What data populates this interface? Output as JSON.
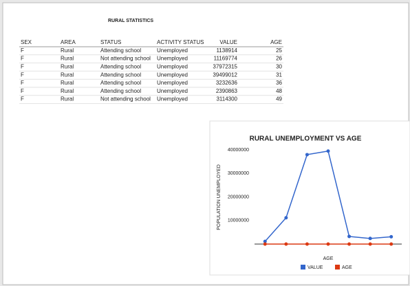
{
  "title": "RURAL STATISTICS",
  "table": {
    "header": [
      "SEX",
      "AREA",
      "STATUS",
      "ACTIVITY STATUS",
      "VALUE",
      "AGE"
    ],
    "rows": [
      [
        "F",
        "Rural",
        "Attending school",
        "Unemployed",
        1138914,
        25
      ],
      [
        "F",
        "Rural",
        "Not attending school",
        "Unemployed",
        11169774,
        26
      ],
      [
        "F",
        "Rural",
        "Attending school",
        "Unemployed",
        37972315,
        30
      ],
      [
        "F",
        "Rural",
        "Attending school",
        "Unemployed",
        39499012,
        31
      ],
      [
        "F",
        "Rural",
        "Attending school",
        "Unemployed",
        3232636,
        36
      ],
      [
        "F",
        "Rural",
        "Attending school",
        "Unemployed",
        2390863,
        48
      ],
      [
        "F",
        "Rural",
        "Not attending school",
        "Unemployed",
        3114300,
        49
      ]
    ]
  },
  "chart_data": {
    "type": "line",
    "title": "RURAL UNEMPLOYMENT VS AGE",
    "y_label": "POPULATION UNEMPLOYED",
    "x_label": "AGE",
    "categories": [
      null,
      null,
      null,
      null,
      null,
      null,
      null
    ],
    "series": [
      {
        "name": "VALUE",
        "color": "#3366cc",
        "values": [
          1138914,
          11169774,
          37972315,
          39499012,
          3232636,
          2390863,
          3114300
        ]
      },
      {
        "name": "AGE",
        "color": "#dc3912",
        "values": [
          25,
          26,
          30,
          31,
          36,
          48,
          49
        ]
      }
    ],
    "ylim": [
      0,
      40000000
    ],
    "yticks": [
      10000000,
      20000000,
      30000000,
      40000000
    ],
    "grid": false,
    "legend": "bottom"
  }
}
